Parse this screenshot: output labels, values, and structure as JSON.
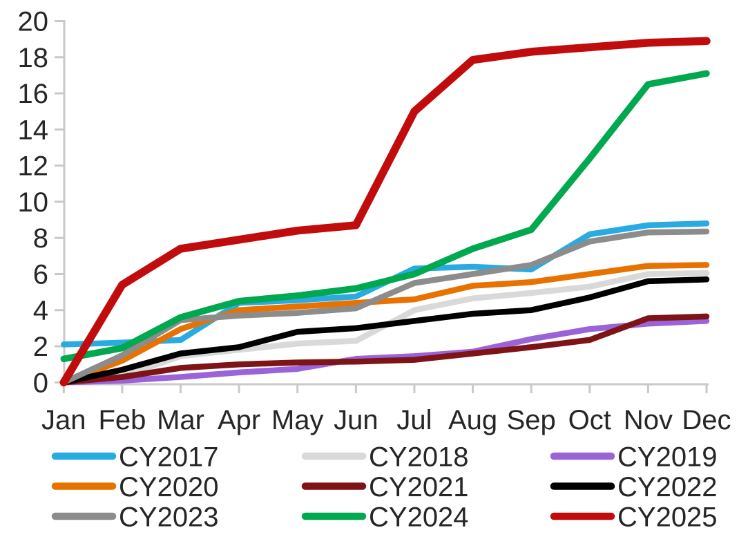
{
  "chart_data": {
    "type": "line",
    "title": "",
    "xlabel": "",
    "ylabel": "",
    "categories": [
      "Jan",
      "Feb",
      "Mar",
      "Apr",
      "May",
      "Jun",
      "Jul",
      "Aug",
      "Sep",
      "Oct",
      "Nov",
      "Dec"
    ],
    "ylim": [
      0,
      20
    ],
    "ytick_step": 2,
    "yticks": [
      0,
      2,
      4,
      6,
      8,
      10,
      12,
      14,
      16,
      18,
      20
    ],
    "grid": false,
    "legend_position": "bottom",
    "legend_columns": 3,
    "series": [
      {
        "name": "CY2017",
        "color": "#29ABE2",
        "width": 8.5,
        "values": [
          2.1,
          2.2,
          2.35,
          4.4,
          4.55,
          4.75,
          6.3,
          6.4,
          6.25,
          8.2,
          8.7,
          8.8
        ]
      },
      {
        "name": "CY2018",
        "color": "#D9D9D9",
        "width": 8.5,
        "values": [
          0,
          0.35,
          1.45,
          1.8,
          2.15,
          2.3,
          4.0,
          4.65,
          4.95,
          5.3,
          6.0,
          6.05
        ]
      },
      {
        "name": "CY2019",
        "color": "#9A63D8",
        "width": 8.5,
        "values": [
          0,
          0.1,
          0.3,
          0.55,
          0.75,
          1.3,
          1.45,
          1.7,
          2.4,
          2.95,
          3.25,
          3.4
        ]
      },
      {
        "name": "CY2020",
        "color": "#E87200",
        "width": 8.5,
        "values": [
          0,
          1.2,
          2.95,
          4.0,
          4.2,
          4.4,
          4.6,
          5.35,
          5.55,
          6.0,
          6.45,
          6.5
        ]
      },
      {
        "name": "CY2021",
        "color": "#7E1416",
        "width": 8.5,
        "values": [
          0,
          0.3,
          0.8,
          1.0,
          1.1,
          1.15,
          1.25,
          1.6,
          1.95,
          2.35,
          3.55,
          3.65
        ]
      },
      {
        "name": "CY2022",
        "color": "#000000",
        "width": 8.5,
        "values": [
          0,
          0.7,
          1.6,
          1.95,
          2.8,
          3.0,
          3.4,
          3.8,
          4.0,
          4.7,
          5.6,
          5.7
        ]
      },
      {
        "name": "CY2023",
        "color": "#8C8C8C",
        "width": 8.5,
        "values": [
          0,
          1.5,
          3.45,
          3.7,
          3.85,
          4.1,
          5.5,
          6.0,
          6.5,
          7.8,
          8.3,
          8.35
        ]
      },
      {
        "name": "CY2024",
        "color": "#00A84F",
        "width": 9.5,
        "values": [
          1.3,
          1.9,
          3.6,
          4.5,
          4.8,
          5.2,
          6.0,
          7.4,
          8.45,
          12.4,
          16.5,
          17.1
        ]
      },
      {
        "name": "CY2025",
        "color": "#C00C0C",
        "width": 11.5,
        "values": [
          0,
          5.4,
          7.4,
          7.9,
          8.4,
          8.7,
          15.0,
          17.85,
          18.3,
          18.55,
          18.8,
          18.9
        ]
      }
    ]
  },
  "colors": {
    "axis": "#C9C9C9",
    "text": "#262626",
    "background": "#FFFFFF"
  }
}
